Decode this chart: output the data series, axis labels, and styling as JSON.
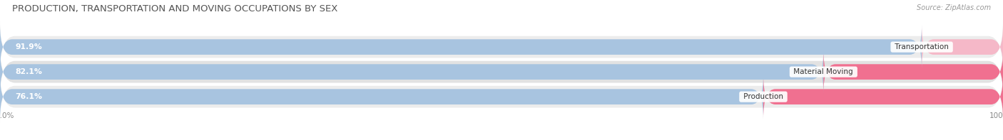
{
  "title": "PRODUCTION, TRANSPORTATION AND MOVING OCCUPATIONS BY SEX",
  "source": "Source: ZipAtlas.com",
  "categories": [
    "Transportation",
    "Material Moving",
    "Production"
  ],
  "male_pct": [
    91.9,
    82.1,
    76.1
  ],
  "female_pct": [
    8.1,
    17.9,
    23.9
  ],
  "male_color": "#a8c4e0",
  "female_color_transportation": "#f5b8c8",
  "female_color_material": "#f07090",
  "female_color_production": "#f07090",
  "row_bg_color_odd": "#ececec",
  "row_bg_color_even": "#e2e2e2",
  "title_fontsize": 9.5,
  "label_fontsize": 7.8,
  "tick_fontsize": 7.5,
  "legend_fontsize": 8,
  "source_fontsize": 7,
  "fig_bg_color": "#ffffff"
}
